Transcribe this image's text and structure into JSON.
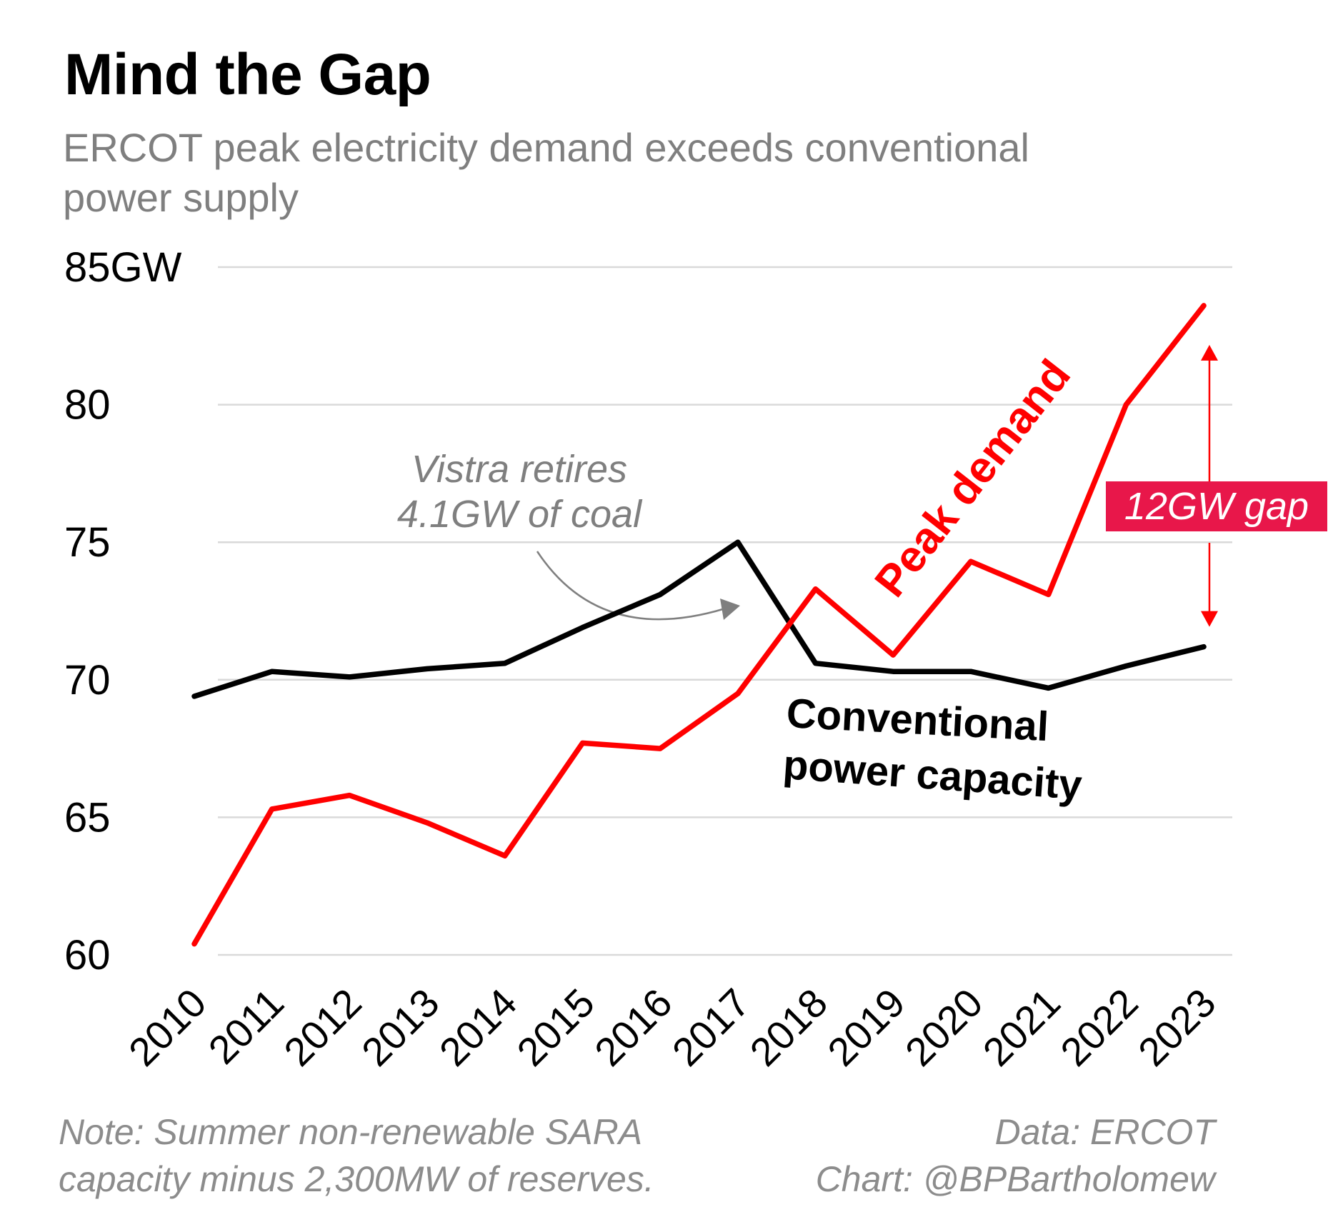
{
  "title": "Mind the Gap",
  "subtitle": "ERCOT peak electricity demand exceeds conventional power supply",
  "note": [
    "Note: Summer non-renewable SARA",
    "capacity minus 2,300MW of reserves."
  ],
  "credit": [
    "Data: ERCOT",
    "Chart: @BPBartholomew"
  ],
  "chart_data": {
    "type": "line",
    "ylim": [
      60,
      85
    ],
    "yticks": [
      60,
      65,
      70,
      75,
      80,
      85
    ],
    "ytick_labels": [
      "60",
      "65",
      "70",
      "75",
      "80",
      "85GW"
    ],
    "grid": true,
    "legend": "direct labels on lines",
    "x": [
      "2010",
      "2011",
      "2012",
      "2013",
      "2014",
      "2015",
      "2016",
      "2017",
      "2018",
      "2019",
      "2020",
      "2021",
      "2022",
      "2023"
    ],
    "series": [
      {
        "name": "Peak demand",
        "color": "#ff0000",
        "values": [
          60.4,
          65.3,
          65.8,
          64.8,
          63.6,
          67.7,
          67.5,
          69.5,
          73.3,
          70.9,
          74.3,
          73.1,
          80.0,
          83.6
        ]
      },
      {
        "name": "Conventional power capacity",
        "color": "#000000",
        "values": [
          69.4,
          70.3,
          70.1,
          70.4,
          70.6,
          71.9,
          73.1,
          75.0,
          70.6,
          70.3,
          70.3,
          69.7,
          70.5,
          71.2
        ]
      }
    ],
    "annotations": {
      "vistra": [
        "Vistra retires",
        "4.1GW of coal"
      ],
      "gap": "12GW gap"
    },
    "colors": {
      "gap_box": "#e8174a",
      "annotation_gray": "#7f7f7f",
      "grid": "#d9d9d9"
    }
  }
}
